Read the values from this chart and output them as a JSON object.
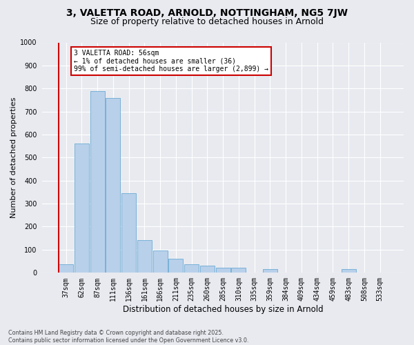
{
  "title_line1": "3, VALETTA ROAD, ARNOLD, NOTTINGHAM, NG5 7JW",
  "title_line2": "Size of property relative to detached houses in Arnold",
  "xlabel": "Distribution of detached houses by size in Arnold",
  "ylabel": "Number of detached properties",
  "categories": [
    "37sqm",
    "62sqm",
    "87sqm",
    "111sqm",
    "136sqm",
    "161sqm",
    "186sqm",
    "211sqm",
    "235sqm",
    "260sqm",
    "285sqm",
    "310sqm",
    "335sqm",
    "359sqm",
    "384sqm",
    "409sqm",
    "434sqm",
    "459sqm",
    "483sqm",
    "508sqm",
    "533sqm"
  ],
  "values": [
    36,
    560,
    790,
    760,
    345,
    140,
    95,
    60,
    35,
    30,
    20,
    20,
    0,
    15,
    0,
    0,
    0,
    0,
    15,
    0,
    0
  ],
  "bar_color": "#b8d0ea",
  "bar_edge_color": "#6aaad4",
  "bg_color": "#e8eaf0",
  "grid_color": "#ffffff",
  "annotation_text": "3 VALETTA ROAD: 56sqm\n← 1% of detached houses are smaller (36)\n99% of semi-detached houses are larger (2,899) →",
  "annotation_box_facecolor": "#ffffff",
  "annotation_border_color": "#cc0000",
  "marker_color": "#cc0000",
  "footer_text": "Contains HM Land Registry data © Crown copyright and database right 2025.\nContains public sector information licensed under the Open Government Licence v3.0.",
  "ylim": [
    0,
    1000
  ],
  "yticks": [
    0,
    100,
    200,
    300,
    400,
    500,
    600,
    700,
    800,
    900,
    1000
  ],
  "title1_fontsize": 10.0,
  "title2_fontsize": 9.0,
  "ylabel_fontsize": 8.0,
  "xlabel_fontsize": 8.5,
  "tick_fontsize": 7.0,
  "annotation_fontsize": 7.0,
  "footer_fontsize": 5.8
}
